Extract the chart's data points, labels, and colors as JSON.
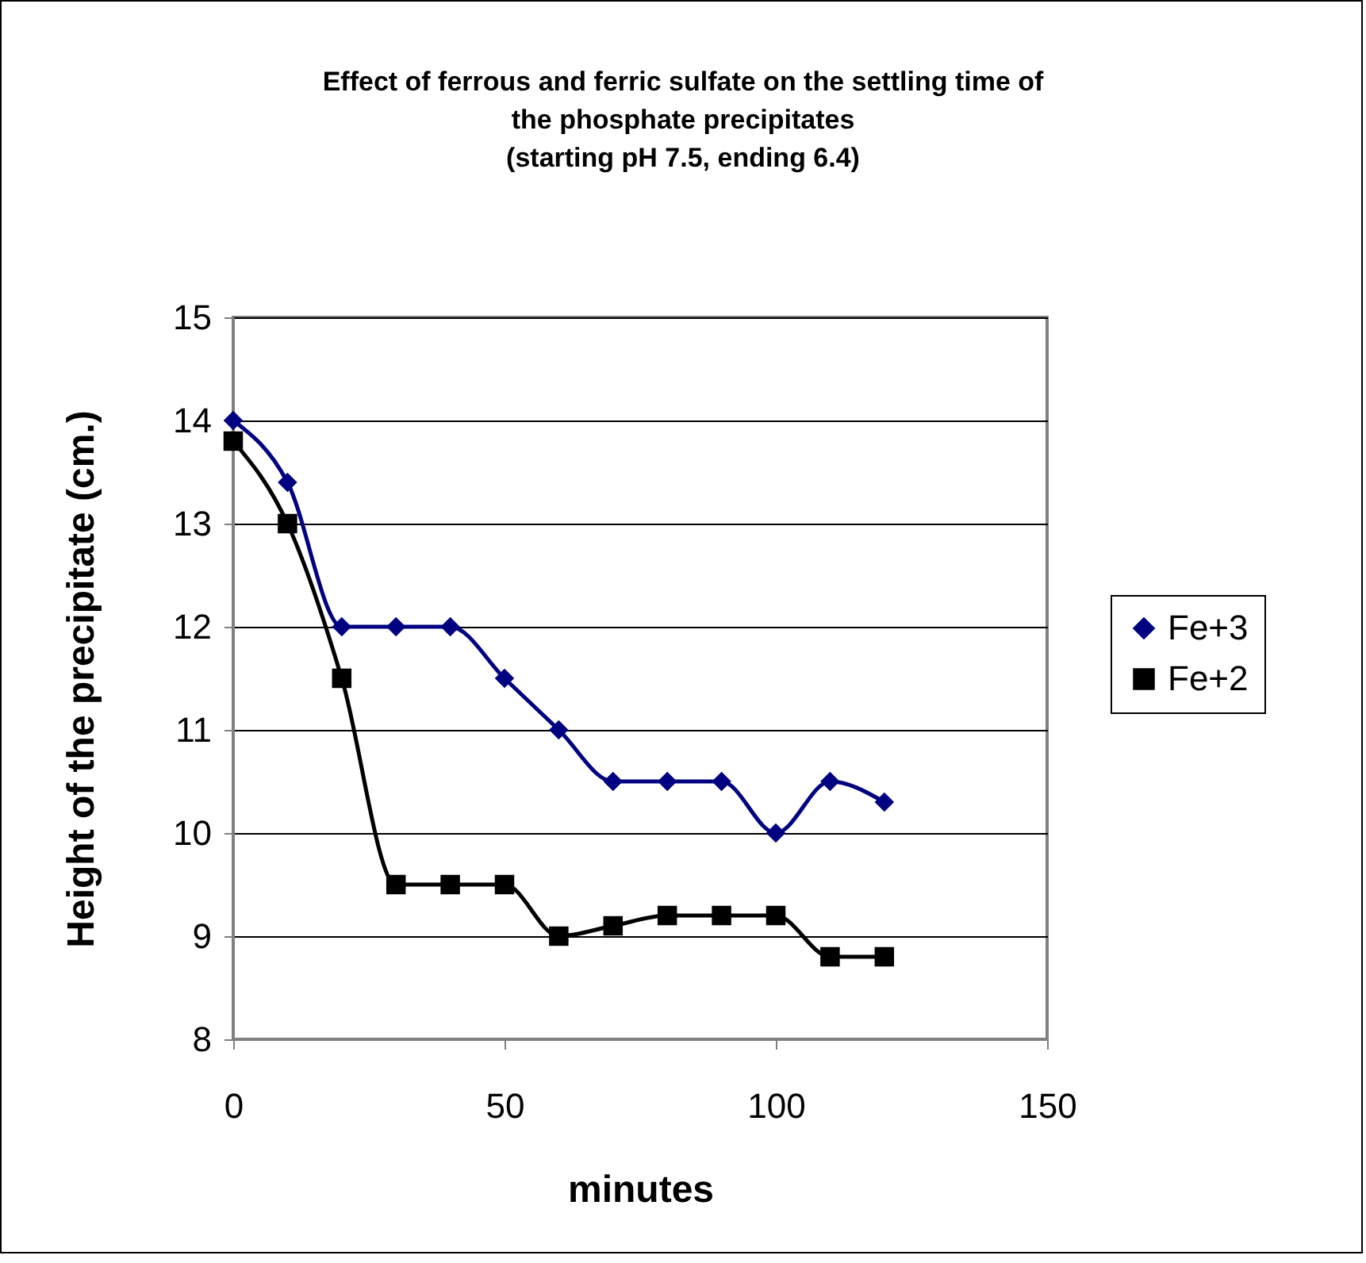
{
  "chart_data": {
    "type": "line",
    "title": "Effect of ferrous and ferric sulfate on the settling time of\nthe phosphate precipitates\n(starting pH 7.5, ending 6.4)",
    "xlabel": "minutes",
    "ylabel": "Height of the precipitate (cm.)",
    "x": [
      0,
      10,
      20,
      30,
      40,
      50,
      60,
      70,
      80,
      90,
      100,
      110,
      120
    ],
    "series": [
      {
        "name": "Fe+3",
        "color": "#000080",
        "marker": "diamond",
        "values": [
          14,
          13.4,
          12,
          12,
          12,
          11.5,
          11,
          10.5,
          10.5,
          10.5,
          10,
          10.5,
          10.3
        ]
      },
      {
        "name": "Fe+2",
        "color": "#000000",
        "marker": "square",
        "values": [
          13.8,
          13,
          11.5,
          9.5,
          9.5,
          9.5,
          9,
          9.1,
          9.2,
          9.2,
          9.2,
          8.8,
          8.8
        ]
      }
    ],
    "xlim": [
      0,
      150
    ],
    "xticks": [
      0,
      50,
      100,
      150
    ],
    "ylim": [
      8,
      15
    ],
    "yticks": [
      8,
      9,
      10,
      11,
      12,
      13,
      14,
      15
    ],
    "grid": "y",
    "legend": "right",
    "line_style": "solid"
  }
}
